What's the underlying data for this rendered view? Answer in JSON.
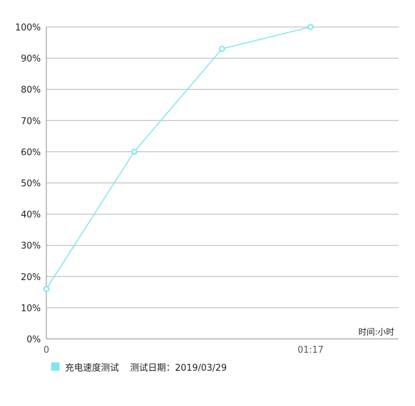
{
  "chart_data": {
    "type": "line",
    "x": [
      "0",
      "",
      "",
      "01:17"
    ],
    "x_tick_labels": [
      "0",
      "01:17"
    ],
    "y_tick_labels": [
      "0%",
      "10%",
      "20%",
      "30%",
      "40%",
      "50%",
      "60%",
      "70%",
      "80%",
      "90%",
      "100%"
    ],
    "ylim": [
      0,
      100
    ],
    "y_unit": "%",
    "xlabel": "时间:小时",
    "ylabel": "",
    "grid": true,
    "legend_position": "bottom-left",
    "series": [
      {
        "name": "充电速度测试",
        "values": [
          16,
          60,
          93,
          100
        ],
        "color": "#7fe6f2"
      }
    ]
  },
  "legend": {
    "series_label": "充电速度测试",
    "date_text": "测试日期：2019/03/29"
  },
  "colors": {
    "line": "#7fe6f2",
    "grid": "#b3b3b3",
    "axis": "#888888",
    "text": "#222222",
    "tick_text": "#555555"
  }
}
